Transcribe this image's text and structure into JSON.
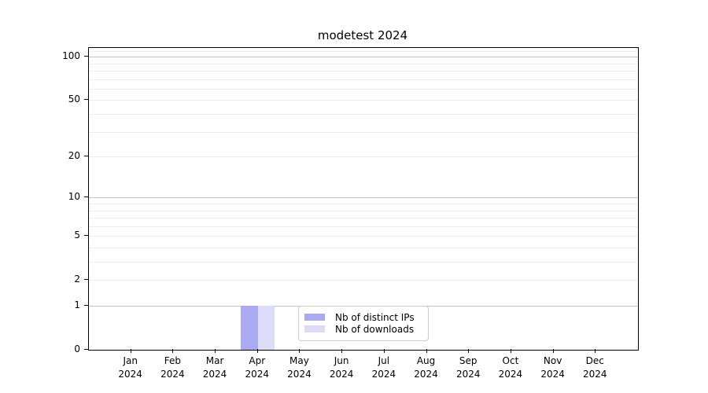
{
  "chart_data": {
    "type": "bar",
    "title": "modetest 2024",
    "categories": [
      "Jan",
      "Feb",
      "Mar",
      "Apr",
      "May",
      "Jun",
      "Jul",
      "Aug",
      "Sep",
      "Oct",
      "Nov",
      "Dec"
    ],
    "year_label": "2024",
    "series": [
      {
        "name": "Nb of distinct IPs",
        "color": "#aaaaf2",
        "values": [
          0,
          0,
          0,
          1,
          0,
          0,
          0,
          0,
          0,
          0,
          0,
          0
        ]
      },
      {
        "name": "Nb of downloads",
        "color": "#dcdcf8",
        "values": [
          0,
          0,
          0,
          1,
          0,
          0,
          0,
          0,
          0,
          0,
          0,
          0
        ]
      }
    ],
    "y_scale": "log1p",
    "y_ticks": [
      0,
      1,
      2,
      5,
      10,
      20,
      50,
      100
    ],
    "y_max": 115,
    "ylim": [
      0,
      115
    ],
    "grid": {
      "major_values": [
        1,
        10,
        100
      ],
      "minor_values": [
        2,
        3,
        4,
        5,
        6,
        7,
        8,
        9,
        20,
        30,
        40,
        50,
        60,
        70,
        80,
        90,
        110
      ],
      "major_color": "#c3c3c3",
      "minor_color": "#ececec"
    },
    "legend_position": "lower center",
    "axis_color": "#000000",
    "background": "#ffffff"
  }
}
